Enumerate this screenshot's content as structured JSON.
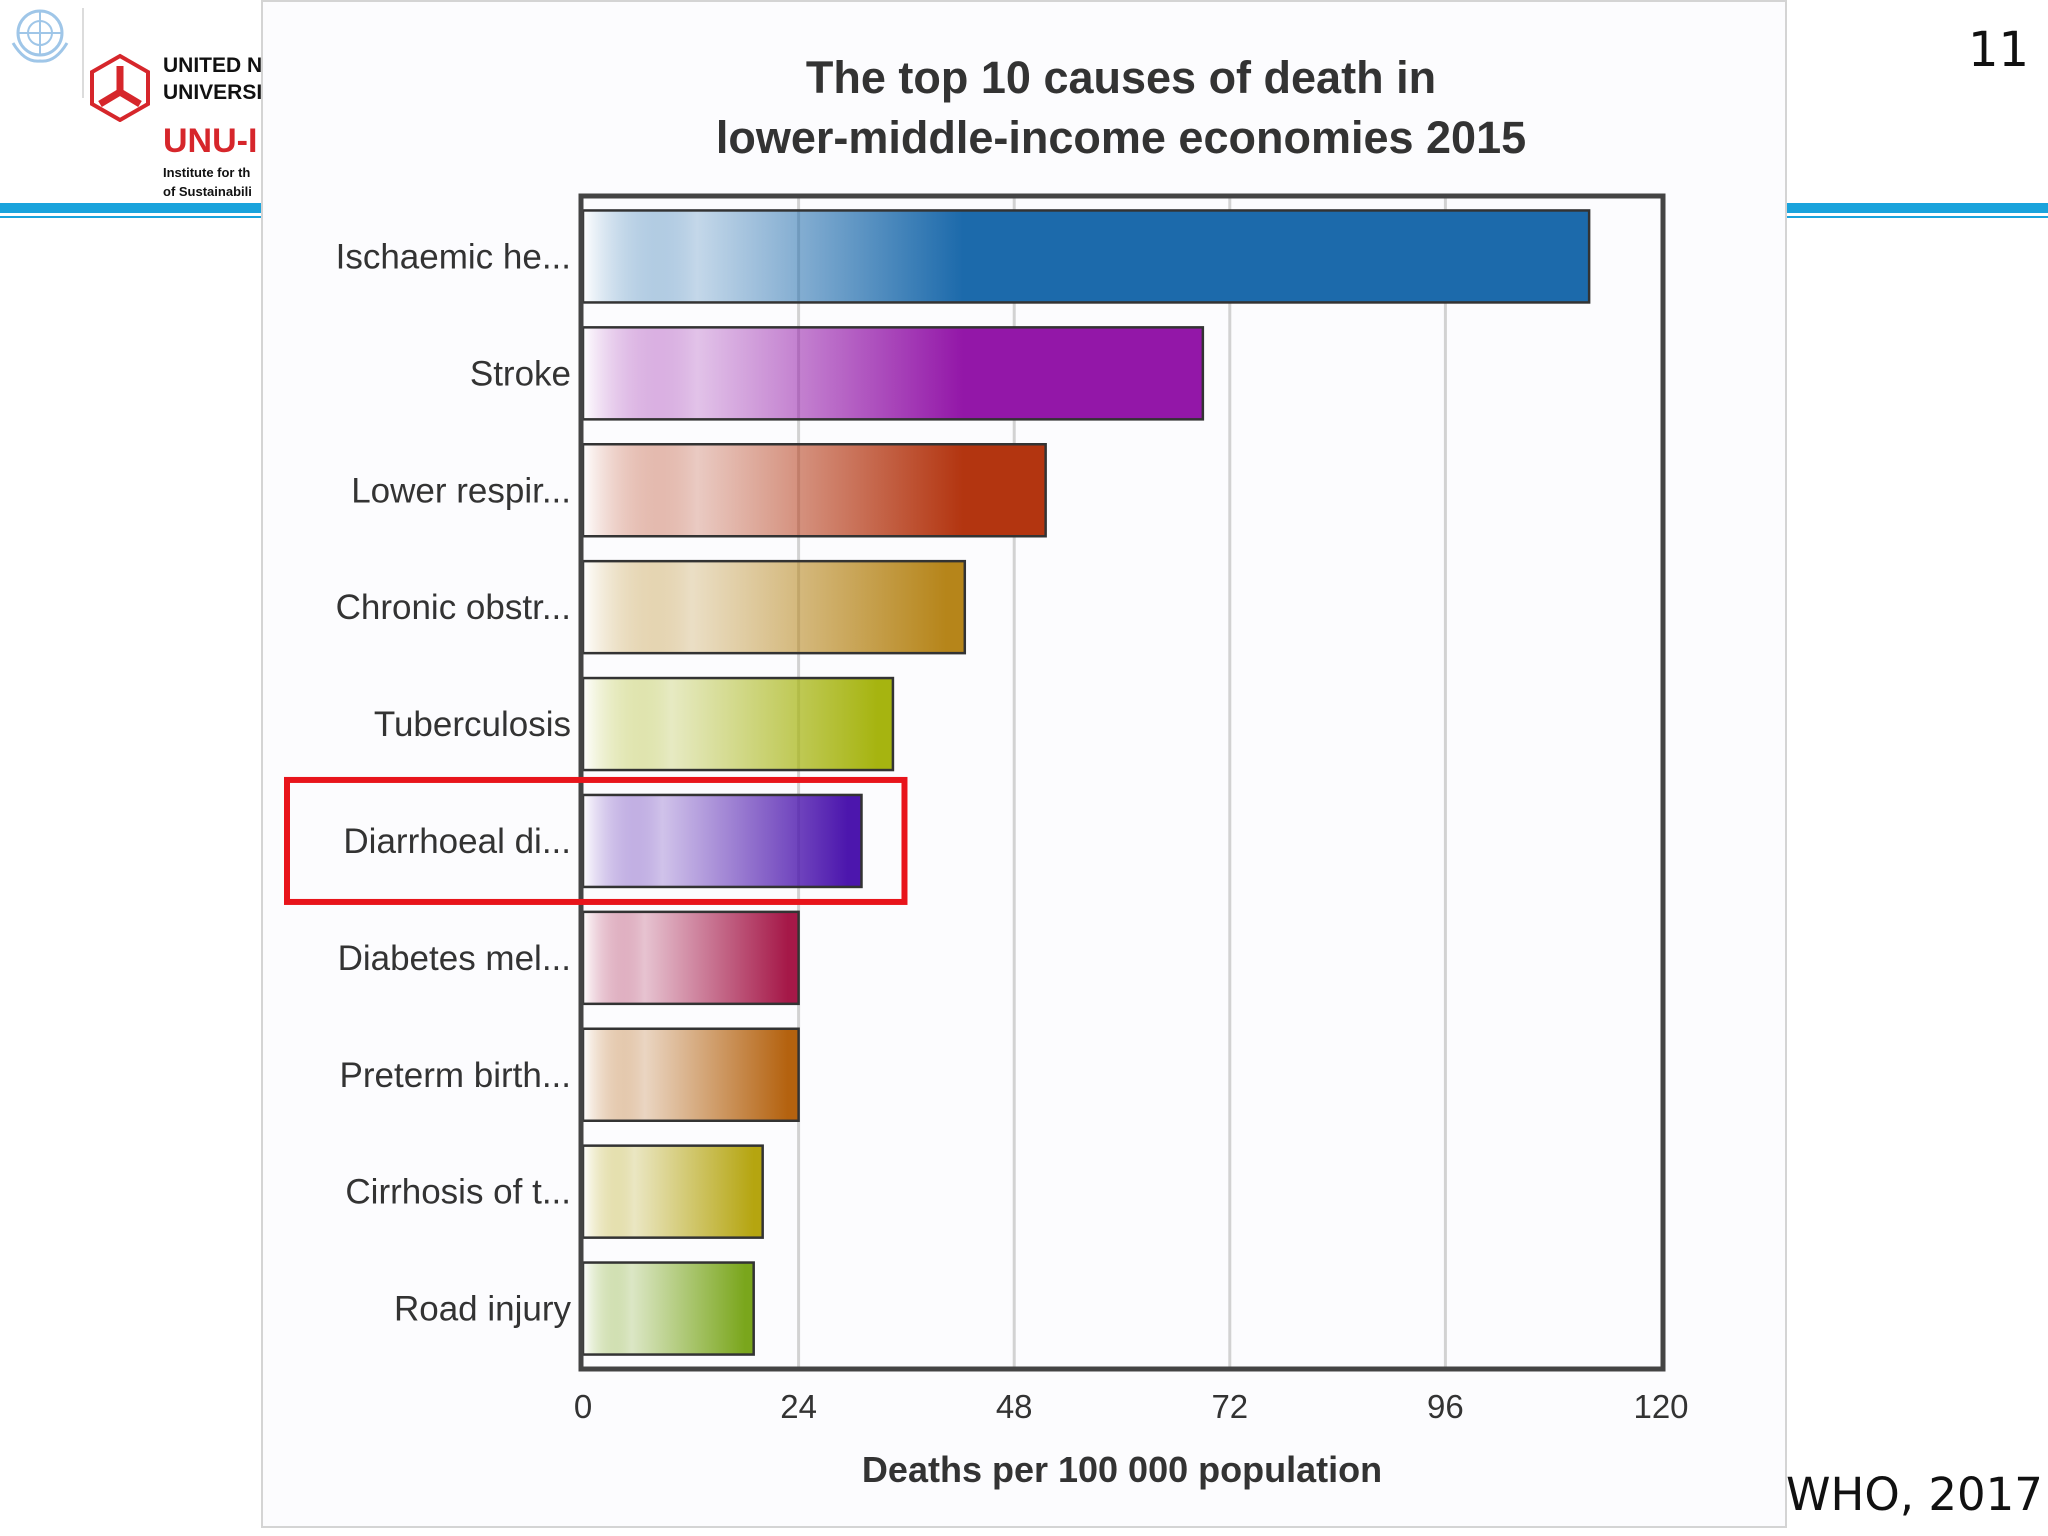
{
  "slide": {
    "organization_line1": "UNITED N",
    "organization_line2": "UNIVERSI",
    "organization_abbr": "UNU-I",
    "institute_line1": "Institute for th",
    "institute_line2": "of Sustainabili",
    "slide_number": "11",
    "source": "WHO, 2017",
    "accent_color": "#1aa3dc",
    "brand_red": "#d6262b"
  },
  "chart_data": {
    "type": "bar",
    "orientation": "horizontal",
    "title_line1": "The top 10 causes of death in",
    "title_line2": "lower-middle-income economies 2015",
    "xlabel": "Deaths per 100 000 population",
    "xlim": [
      0,
      120
    ],
    "xticks": [
      "0",
      "24",
      "48",
      "72",
      "96",
      "120"
    ],
    "grid": true,
    "highlighted_category": "Diarrhoeal di...",
    "highlight_color": "#e8141b",
    "categories": [
      "Ischaemic he...",
      "Stroke",
      "Lower respir...",
      "Chronic obstr...",
      "Tuberculosis",
      "Diarrhoeal di...",
      "Diabetes mel...",
      "Preterm birth...",
      "Cirrhosis of t...",
      "Road injury"
    ],
    "values": [
      112,
      69,
      51.5,
      42.5,
      34.5,
      31,
      24,
      24,
      20,
      19
    ],
    "colors": [
      "#1c6aab",
      "#9317a8",
      "#b33510",
      "#b6851a",
      "#a6b410",
      "#4c16ad",
      "#a51848",
      "#b4620f",
      "#b5a510",
      "#7aa61c"
    ]
  }
}
